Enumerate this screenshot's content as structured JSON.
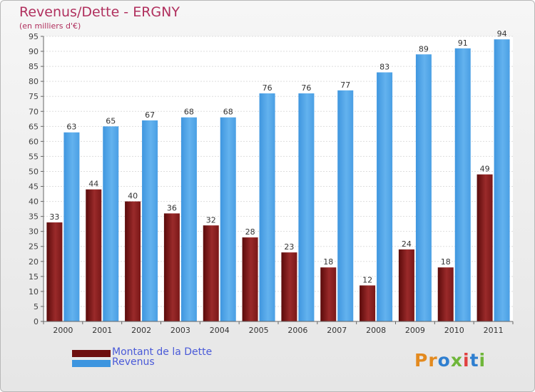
{
  "header": {
    "title": "Revenus/Dette - ERGNY",
    "subtitle": "(en milliers d'€)"
  },
  "chart_data": {
    "type": "bar",
    "categories": [
      "2000",
      "2001",
      "2002",
      "2003",
      "2004",
      "2005",
      "2006",
      "2007",
      "2008",
      "2009",
      "2010",
      "2011"
    ],
    "series": [
      {
        "name": "Montant de la Dette",
        "values": [
          33,
          44,
          40,
          36,
          32,
          28,
          23,
          18,
          12,
          24,
          18,
          49
        ],
        "color": "#7a1c1c"
      },
      {
        "name": "Revenus",
        "values": [
          63,
          65,
          67,
          68,
          68,
          76,
          76,
          77,
          83,
          89,
          91,
          94
        ],
        "color": "#4ea2e4"
      }
    ],
    "ylim": [
      0,
      95
    ],
    "yticks": [
      "0",
      "5",
      "10",
      "15",
      "20",
      "25",
      "30",
      "35",
      "40",
      "45",
      "50",
      "55",
      "60",
      "65",
      "70",
      "75",
      "80",
      "85",
      "90",
      "95"
    ],
    "grid": true,
    "legend": "bottom-left"
  },
  "legend": {
    "items": [
      {
        "label": "Montant de la Dette",
        "color": "#6e0f0f"
      },
      {
        "label": "Revenus",
        "color": "#3d95df"
      }
    ]
  },
  "logo": {
    "letters": [
      "P",
      "r",
      "o",
      "x",
      "i",
      "t",
      "i"
    ],
    "colors": [
      "#e38a1f",
      "#e38a1f",
      "#2f7fd0",
      "#6fb63a",
      "#e04040",
      "#2f7fd0",
      "#6fb63a"
    ]
  }
}
